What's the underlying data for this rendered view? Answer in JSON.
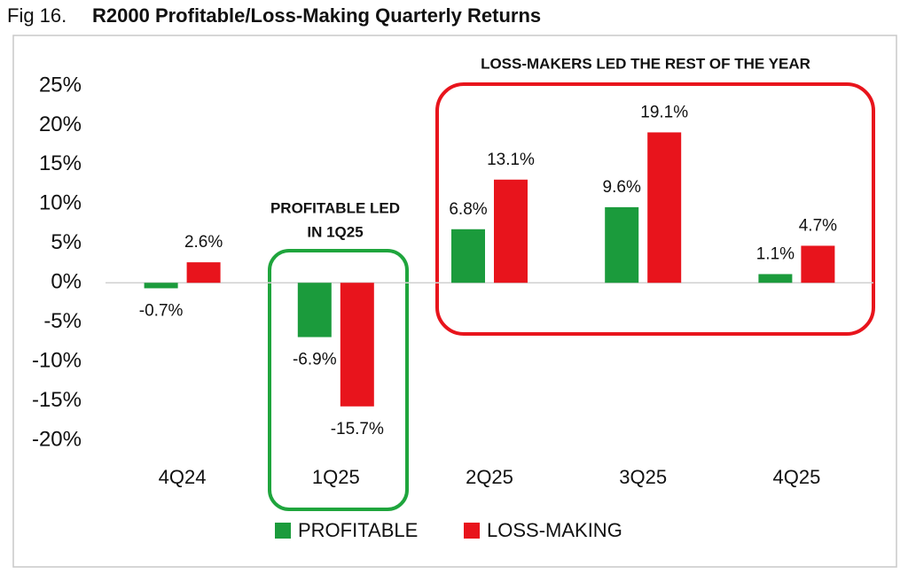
{
  "chart_data": {
    "type": "bar",
    "title_prefix": "Fig 16.",
    "title": "R2000 Profitable/Loss-Making Quarterly Returns",
    "categories": [
      "4Q24",
      "1Q25",
      "2Q25",
      "3Q25",
      "4Q25"
    ],
    "series": [
      {
        "name": "PROFITABLE",
        "color": "#1b9b3c",
        "values": [
          -0.7,
          -6.9,
          6.8,
          9.6,
          1.1
        ],
        "value_labels": [
          "-0.7%",
          "-6.9%",
          "6.8%",
          "9.6%",
          "1.1%"
        ]
      },
      {
        "name": "LOSS-MAKING",
        "color": "#e8141c",
        "values": [
          2.6,
          -15.7,
          13.1,
          19.1,
          4.7
        ],
        "value_labels": [
          "2.6%",
          "-15.7%",
          "13.1%",
          "19.1%",
          "4.7%"
        ]
      }
    ],
    "ylim": [
      -20,
      25
    ],
    "yticks": [
      {
        "value": 25,
        "label": "25%"
      },
      {
        "value": 20,
        "label": "20%"
      },
      {
        "value": 15,
        "label": "15%"
      },
      {
        "value": 10,
        "label": "10%"
      },
      {
        "value": 5,
        "label": "5%"
      },
      {
        "value": 0,
        "label": "0%"
      },
      {
        "value": -5,
        "label": "-5%"
      },
      {
        "value": -10,
        "label": "-10%"
      },
      {
        "value": -15,
        "label": "-15%"
      },
      {
        "value": -20,
        "label": "-20%"
      }
    ],
    "grid": false,
    "annotations": {
      "profitable": [
        "PROFITABLE LED",
        "IN 1Q25"
      ],
      "loss": "LOSS-MAKERS LED THE REST OF THE YEAR"
    }
  }
}
